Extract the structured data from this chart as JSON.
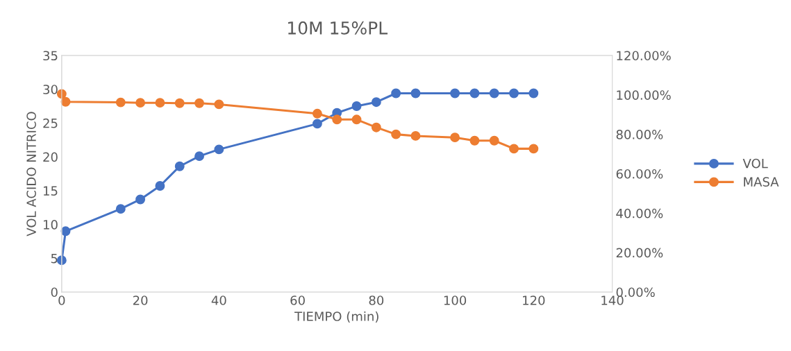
{
  "chart_data": {
    "type": "line",
    "title": "10M 15%PL",
    "xlabel": "TIEMPO (min)",
    "ylabel": "VOL ACIDO NITRICO",
    "xlim": [
      0,
      140
    ],
    "xticks": [
      0,
      20,
      40,
      60,
      80,
      100,
      120,
      140
    ],
    "ylim": [
      0,
      35
    ],
    "yticks": [
      0,
      5,
      10,
      15,
      20,
      25,
      30,
      35
    ],
    "y2lim": [
      0,
      120
    ],
    "y2ticks": [
      {
        "value": 0,
        "label": "0.00%"
      },
      {
        "value": 20,
        "label": "20.00%"
      },
      {
        "value": 40,
        "label": "40.00%"
      },
      {
        "value": 60,
        "label": "60.00%"
      },
      {
        "value": 80,
        "label": "80.00%"
      },
      {
        "value": 100,
        "label": "100.00%"
      },
      {
        "value": 120,
        "label": "120.00%"
      }
    ],
    "marker": "circle",
    "line_style": "solid",
    "grid": false,
    "legend": "right",
    "series": [
      {
        "name": "VOL",
        "color": "#4472c4",
        "x": [
          0,
          1,
          15,
          20,
          25,
          30,
          35,
          40,
          65,
          70,
          75,
          80,
          85,
          90,
          100,
          105,
          110,
          115,
          120
        ],
        "values": [
          4.7,
          9.0,
          12.3,
          13.7,
          15.7,
          18.6,
          20.1,
          21.1,
          24.9,
          26.5,
          27.5,
          28.1,
          29.4,
          29.4,
          29.4,
          29.4,
          29.4,
          29.4,
          29.4
        ]
      },
      {
        "name": "MASA",
        "color": "#ed7d31",
        "axis": "y2",
        "x": [
          0,
          1,
          15,
          20,
          25,
          30,
          35,
          40,
          65,
          70,
          75,
          80,
          85,
          90,
          100,
          105,
          110,
          115,
          120
        ],
        "values": [
          100.5,
          96.5,
          96.2,
          96.0,
          96.0,
          95.8,
          95.8,
          95.2,
          90.5,
          87.5,
          87.5,
          83.5,
          80.0,
          79.2,
          78.4,
          76.8,
          76.8,
          72.7,
          72.7
        ]
      }
    ]
  }
}
